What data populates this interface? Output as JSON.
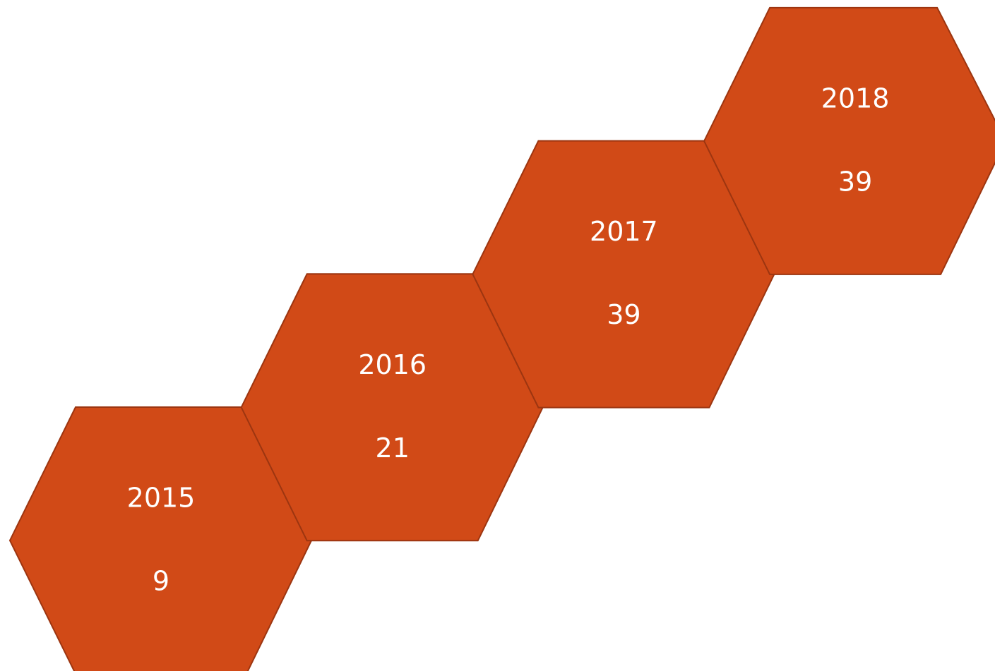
{
  "nodes": [
    {
      "label": "2015",
      "value": 9
    },
    {
      "label": "2016",
      "value": 21
    },
    {
      "label": "2017",
      "value": 39
    },
    {
      "label": "2018",
      "value": 39
    }
  ]
}
